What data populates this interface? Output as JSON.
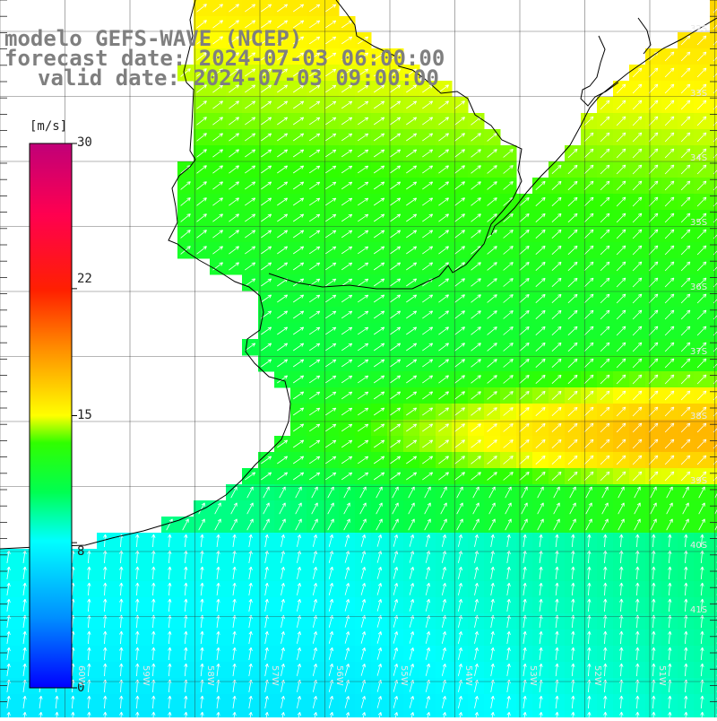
{
  "title": {
    "model": "modelo GEFS-WAVE (NCEP)",
    "forecast": "forecast date: 2024-07-03 06:00:00",
    "valid": "valid date: 2024-07-03 09:00:00"
  },
  "colorbar": {
    "unit": "[m/s]",
    "ticks": [
      {
        "label": "30",
        "value": 30
      },
      {
        "label": "22",
        "value": 22
      },
      {
        "label": "15",
        "value": 15
      },
      {
        "label": "8",
        "value": 8
      },
      {
        "label": "0",
        "value": 0
      }
    ],
    "range": [
      0,
      30
    ],
    "colors": [
      "#0000ff",
      "#00a0ff",
      "#00ffff",
      "#00ff40",
      "#00ff00",
      "#a0ff00",
      "#ffff00",
      "#ff8000",
      "#ff0000",
      "#ff0080",
      "#c00070"
    ]
  },
  "lat_labels": [
    "32S",
    "33S",
    "34S",
    "35S",
    "36S",
    "37S",
    "38S",
    "39S",
    "40S",
    "41S"
  ],
  "lon_labels": [
    "60W",
    "59W",
    "58W",
    "57W",
    "56W",
    "55W",
    "54W",
    "53W",
    "52W",
    "51W"
  ],
  "wind_field": {
    "quantity": "wind speed",
    "unit": "m/s",
    "regions": [
      {
        "area": "south",
        "speed": 8.5,
        "direction": "toward north"
      },
      {
        "area": "central",
        "speed": 12,
        "direction": "toward north-east"
      },
      {
        "area": "east",
        "speed": 14.5,
        "direction": "toward north-east"
      }
    ]
  }
}
